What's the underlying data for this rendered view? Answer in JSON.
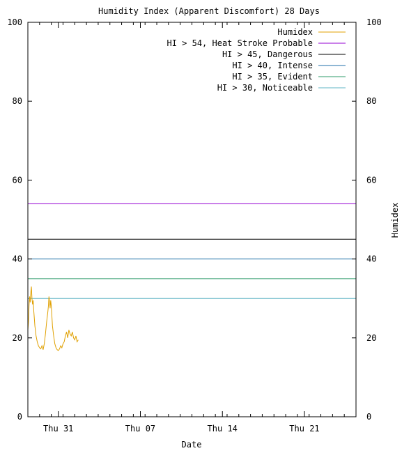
{
  "chart_data": {
    "type": "line",
    "title": "Humidity Index (Apparent Discomfort) 28 Days",
    "xlabel": "Date",
    "ylabel_right": "Humidex",
    "ylim": [
      0,
      100
    ],
    "y_ticks": [
      0,
      20,
      40,
      60,
      80,
      100
    ],
    "x_range_days": [
      0,
      28
    ],
    "x_ticks": [
      {
        "label": "Thu 31",
        "day": 2.6
      },
      {
        "label": "Thu 07",
        "day": 9.6
      },
      {
        "label": "Thu 14",
        "day": 16.6
      },
      {
        "label": "Thu 21",
        "day": 23.6
      }
    ],
    "grid": false,
    "legend_position": "top-right",
    "thresholds": [
      {
        "label": "HI > 54, Heat Stroke Probable",
        "value": 54,
        "color": "#9400d3"
      },
      {
        "label": "HI > 45, Dangerous",
        "value": 45,
        "color": "#000000"
      },
      {
        "label": "HI > 40, Intense",
        "value": 40,
        "color": "#1f6fa8"
      },
      {
        "label": "HI > 35, Evident",
        "value": 35,
        "color": "#2e9b6a"
      },
      {
        "label": "HI > 30, Noticeable",
        "value": 30,
        "color": "#5fb4c4"
      }
    ],
    "series": [
      {
        "name": "Humidex",
        "color": "#e0a000",
        "x": [
          0.0,
          0.05,
          0.1,
          0.15,
          0.2,
          0.25,
          0.3,
          0.35,
          0.4,
          0.45,
          0.5,
          0.55,
          0.6,
          0.7,
          0.8,
          0.9,
          1.0,
          1.1,
          1.2,
          1.3,
          1.4,
          1.5,
          1.6,
          1.7,
          1.75,
          1.8,
          1.85,
          1.9,
          1.95,
          2.0,
          2.05,
          2.1,
          2.2,
          2.3,
          2.4,
          2.5,
          2.6,
          2.7,
          2.8,
          2.9,
          3.0,
          3.1,
          3.2,
          3.3,
          3.4,
          3.5,
          3.6,
          3.7,
          3.8,
          3.9,
          4.0,
          4.1,
          4.2,
          4.3
        ],
        "y": [
          22.0,
          24.0,
          28.0,
          30.5,
          29.0,
          31.5,
          33.0,
          30.0,
          28.5,
          29.5,
          27.0,
          25.0,
          23.0,
          20.5,
          19.0,
          18.0,
          17.5,
          17.2,
          18.0,
          17.0,
          18.5,
          21.0,
          24.0,
          26.5,
          28.0,
          30.5,
          29.0,
          27.5,
          29.5,
          28.0,
          25.5,
          23.0,
          20.5,
          18.5,
          17.5,
          17.0,
          16.8,
          17.2,
          18.0,
          17.5,
          18.5,
          19.0,
          20.5,
          21.5,
          20.0,
          22.0,
          21.0,
          20.5,
          21.5,
          20.0,
          19.5,
          20.5,
          19.0,
          19.5
        ]
      }
    ]
  }
}
